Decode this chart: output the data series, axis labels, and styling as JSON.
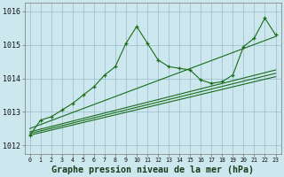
{
  "bg_color": "#cce8ee",
  "grid_color": "#99bbcc",
  "line_color": "#1a6b1a",
  "xlabel": "Graphe pression niveau de la mer (hPa)",
  "ylim": [
    1011.75,
    1016.25
  ],
  "yticks": [
    1012,
    1013,
    1014,
    1015,
    1016
  ],
  "xticks": [
    0,
    1,
    2,
    3,
    4,
    5,
    6,
    7,
    8,
    9,
    10,
    11,
    12,
    13,
    14,
    15,
    16,
    17,
    18,
    19,
    20,
    21,
    22,
    23
  ],
  "line1_x": [
    0,
    1,
    2,
    3,
    4,
    5,
    6,
    7,
    8,
    9,
    10,
    11,
    12,
    13,
    14,
    15,
    16,
    17,
    18,
    19,
    20,
    21,
    22,
    23
  ],
  "line1_y": [
    1012.3,
    1012.75,
    1012.85,
    1013.05,
    1013.25,
    1013.5,
    1013.75,
    1014.1,
    1014.35,
    1015.05,
    1015.55,
    1015.05,
    1014.55,
    1014.35,
    1014.3,
    1014.25,
    1013.95,
    1013.85,
    1013.9,
    1014.1,
    1014.95,
    1015.2,
    1015.8,
    1015.3
  ],
  "line2_x": [
    0,
    23
  ],
  "line2_y": [
    1012.3,
    1014.05
  ],
  "line3_x": [
    0,
    23
  ],
  "line3_y": [
    1012.35,
    1014.15
  ],
  "line4_x": [
    0,
    23
  ],
  "line4_y": [
    1012.4,
    1014.25
  ],
  "line5_x": [
    0,
    23
  ],
  "line5_y": [
    1012.5,
    1015.25
  ]
}
